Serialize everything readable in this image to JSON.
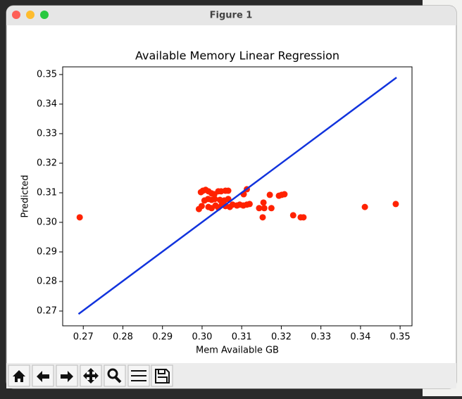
{
  "window": {
    "title": "Figure 1"
  },
  "chart_data": {
    "type": "scatter",
    "title": "Available Memory Linear Regression",
    "x_label": "Mem Available GB",
    "y_label": "Predicted",
    "xlim": [
      0.2648,
      0.353
    ],
    "ylim": [
      0.265,
      0.3526
    ],
    "xticks": [
      0.27,
      0.28,
      0.29,
      {
        "value": 0.3,
        "label": "0.30"
      },
      0.31,
      0.32,
      0.33,
      0.34,
      0.35
    ],
    "yticks": [
      0.27,
      0.28,
      0.29,
      {
        "value": 0.3,
        "label": "0.30"
      },
      0.31,
      0.32,
      0.33,
      0.34,
      0.35
    ],
    "grid": false,
    "points": {
      "color": "#ff2200",
      "x": [
        0.2691,
        0.3002,
        0.3009,
        0.3016,
        0.2997,
        0.3024,
        0.3031,
        0.3041,
        0.3048,
        0.3059,
        0.3066,
        0.3006,
        0.3015,
        0.3024,
        0.3032,
        0.3045,
        0.3056,
        0.3066,
        0.2992,
        0.2999,
        0.3016,
        0.3024,
        0.3034,
        0.3041,
        0.305,
        0.3059,
        0.307,
        0.3077,
        0.3088,
        0.3095,
        0.3104,
        0.3113,
        0.312,
        0.3105,
        0.3113,
        0.3144,
        0.3153,
        0.3155,
        0.3157,
        0.3171,
        0.3175,
        0.3194,
        0.3201,
        0.3208,
        0.323,
        0.3249,
        0.3256,
        0.3411,
        0.3489
      ],
      "y": [
        0.3017,
        0.3107,
        0.311,
        0.3105,
        0.3102,
        0.3098,
        0.3095,
        0.3105,
        0.3105,
        0.3107,
        0.3107,
        0.3074,
        0.3079,
        0.3076,
        0.3079,
        0.3076,
        0.3074,
        0.3079,
        0.3045,
        0.3055,
        0.3052,
        0.3048,
        0.3057,
        0.305,
        0.306,
        0.3055,
        0.3052,
        0.306,
        0.3057,
        0.306,
        0.3057,
        0.306,
        0.3062,
        0.3095,
        0.3112,
        0.3048,
        0.3017,
        0.3067,
        0.3048,
        0.3093,
        0.3048,
        0.309,
        0.3093,
        0.3095,
        0.3024,
        0.3017,
        0.3017,
        0.3052,
        0.3062
      ]
    },
    "line": {
      "color": "#1133dd",
      "x": [
        0.2688,
        0.3491
      ],
      "y": [
        0.269,
        0.349
      ]
    }
  }
}
